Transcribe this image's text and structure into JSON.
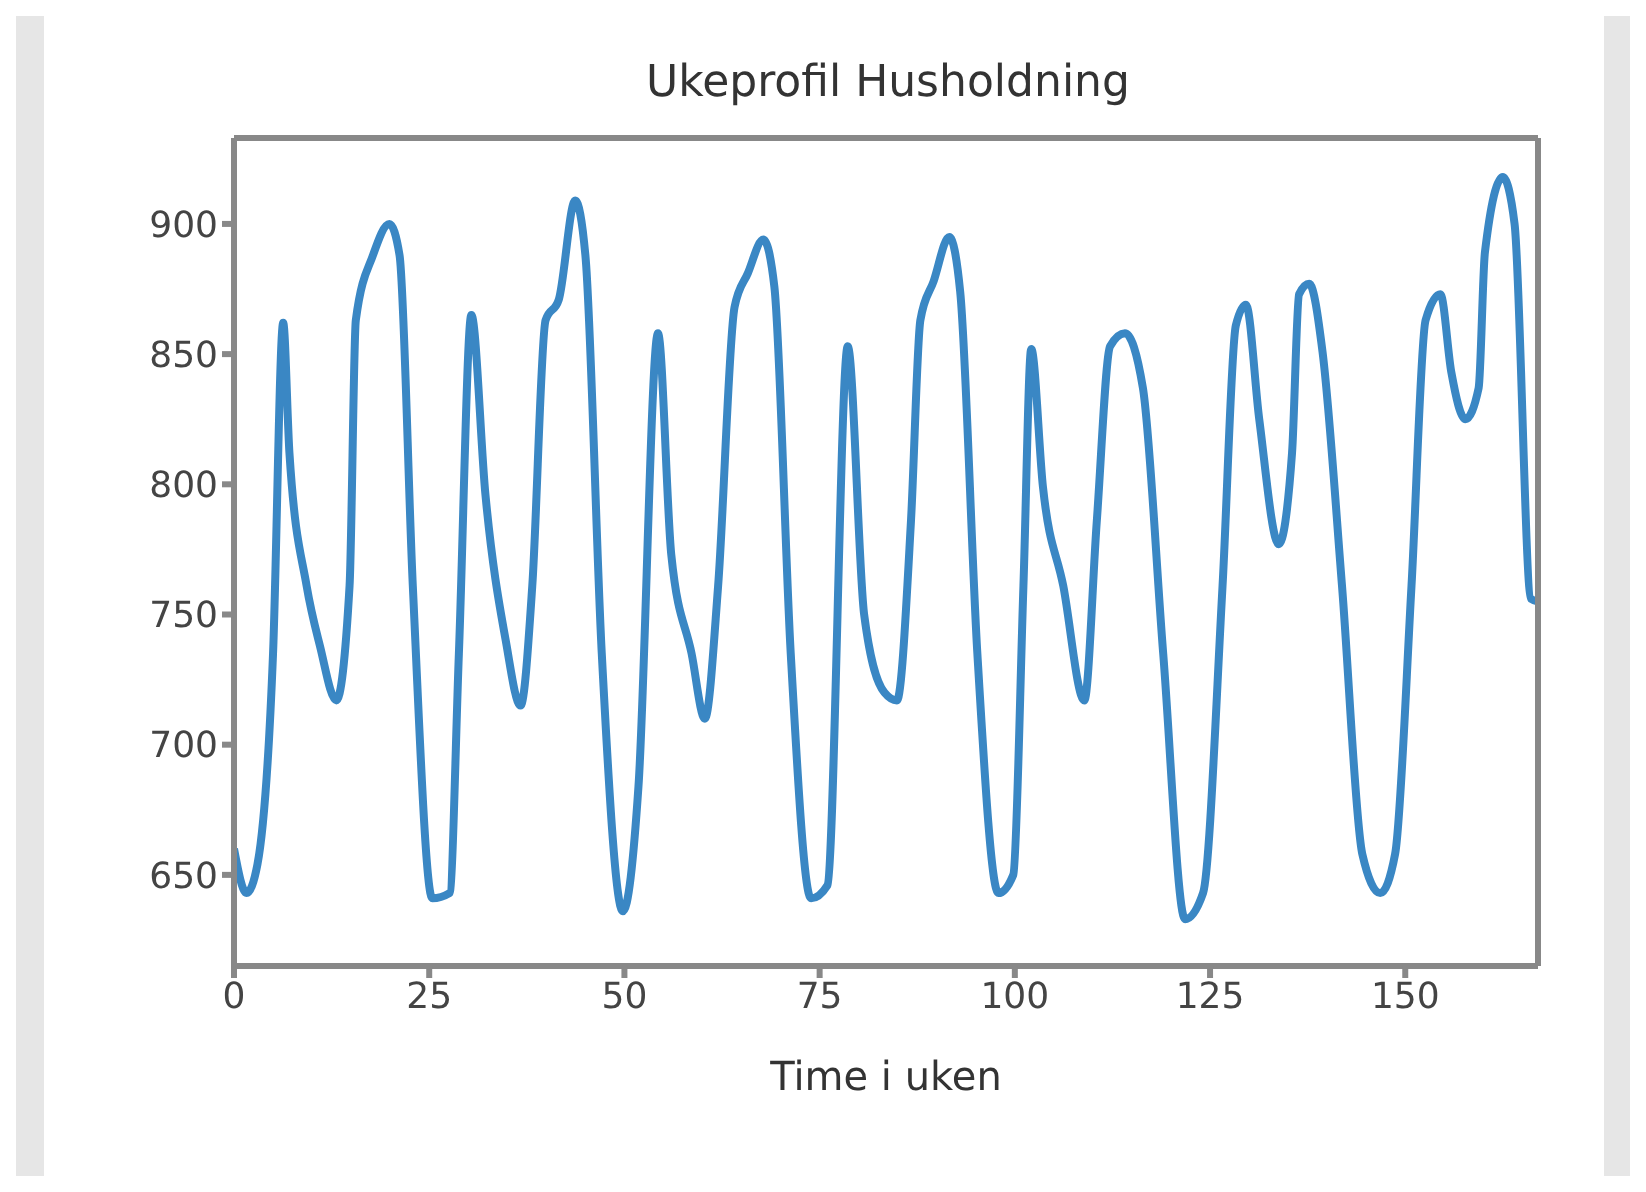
{
  "chart_data": {
    "type": "line",
    "title": "Ukeprofil Husholdning",
    "xlabel": "Time i uken",
    "series": [
      {
        "color": "#3a87c4",
        "x": [
          0,
          1.6,
          3,
          5,
          6.3,
          7.1,
          9.3,
          11,
          13.1,
          14.8,
          15.6,
          17.8,
          19.9,
          21.2,
          22.9,
          25.4,
          27.6,
          28.8,
          30.4,
          32.2,
          34.8,
          36.7,
          38.2,
          39.9,
          41.6,
          43.7,
          45,
          47.1,
          49.8,
          51.8,
          54.3,
          56,
          58.6,
          60.3,
          62,
          64.1,
          65.8,
          67.8,
          69.2,
          71.3,
          73.9,
          76,
          78.6,
          80.7,
          83.3,
          84.9,
          86.7,
          87.9,
          89.6,
          91.6,
          93,
          95.2,
          97.9,
          99.8,
          101.1,
          102.1,
          103.6,
          106.2,
          108.9,
          110.5,
          112.2,
          114.1,
          116.4,
          119,
          121.8,
          124.1,
          126.6,
          128.3,
          129.6,
          131.3,
          133.8,
          135.5,
          136.4,
          137.7,
          139.4,
          141.9,
          144.5,
          146.8,
          148.7,
          150.8,
          152.6,
          154.5,
          155.9,
          157.7,
          159.4,
          160.2,
          162.5,
          164,
          166.1,
          167
        ],
        "values": [
          660,
          643,
          654,
          735,
          862,
          812,
          761,
          738,
          717,
          761,
          863,
          888,
          900,
          888,
          761,
          641,
          643,
          735,
          865,
          796,
          740,
          715,
          761,
          863,
          871,
          909,
          888,
          735,
          636,
          684,
          858,
          773,
          735,
          710,
          761,
          868,
          881,
          894,
          876,
          735,
          641,
          646,
          853,
          750,
          720,
          717,
          786,
          863,
          878,
          895,
          874,
          735,
          643,
          650,
          761,
          852,
          799,
          761,
          717,
          786,
          853,
          858,
          837,
          735,
          633,
          643,
          761,
          861,
          869,
          825,
          777,
          812,
          873,
          877,
          851,
          761,
          658,
          643,
          658,
          761,
          863,
          873,
          843,
          825,
          837,
          889,
          918,
          900,
          756,
          755
        ]
      }
    ],
    "xlim": [
      0,
      167
    ],
    "xticks": [
      0,
      25,
      50,
      75,
      100,
      125,
      150
    ],
    "ylim": [
      615,
      933
    ],
    "yticks": [
      650,
      700,
      750,
      800,
      850,
      900
    ],
    "grid": false,
    "legend": false,
    "marker": "none",
    "line_style": "solid"
  }
}
